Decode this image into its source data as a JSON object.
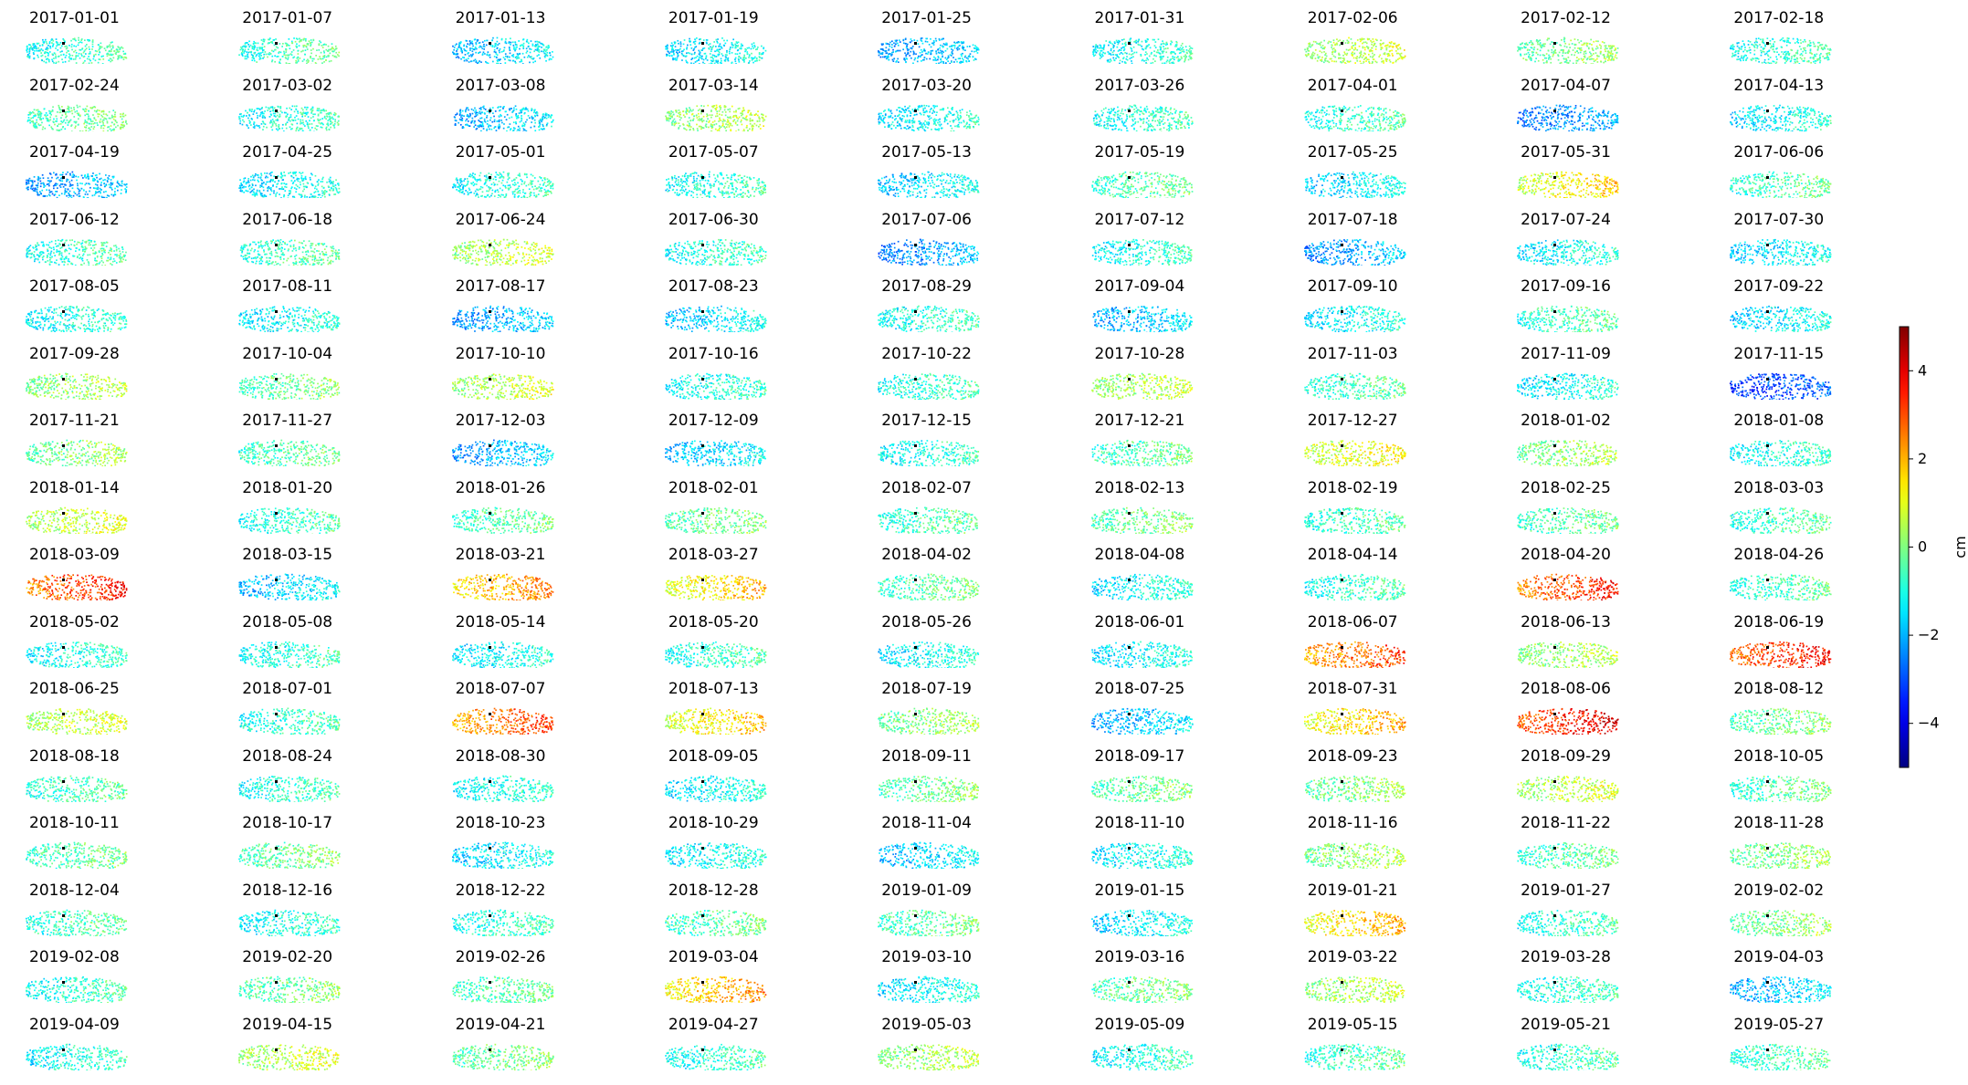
{
  "chart_data": {
    "type": "heatmap",
    "layout": "small-multiples",
    "rows": 16,
    "cols": 9,
    "panels": [
      {
        "date": "2017-01-01",
        "mean": -0.8
      },
      {
        "date": "2017-01-07",
        "mean": -0.6
      },
      {
        "date": "2017-01-13",
        "mean": -1.6
      },
      {
        "date": "2017-01-19",
        "mean": -1.3
      },
      {
        "date": "2017-01-25",
        "mean": -1.9
      },
      {
        "date": "2017-01-31",
        "mean": -1.0
      },
      {
        "date": "2017-02-06",
        "mean": 0.5
      },
      {
        "date": "2017-02-12",
        "mean": 0.0
      },
      {
        "date": "2017-02-18",
        "mean": -0.8
      },
      {
        "date": "2017-02-24",
        "mean": -0.3
      },
      {
        "date": "2017-03-02",
        "mean": -0.9
      },
      {
        "date": "2017-03-08",
        "mean": -1.8
      },
      {
        "date": "2017-03-14",
        "mean": 0.4
      },
      {
        "date": "2017-03-20",
        "mean": -1.2
      },
      {
        "date": "2017-03-26",
        "mean": -0.9
      },
      {
        "date": "2017-04-01",
        "mean": -0.7
      },
      {
        "date": "2017-04-07",
        "mean": -2.3
      },
      {
        "date": "2017-04-13",
        "mean": -1.2
      },
      {
        "date": "2017-04-19",
        "mean": -2.0
      },
      {
        "date": "2017-04-25",
        "mean": -1.3
      },
      {
        "date": "2017-05-01",
        "mean": -0.9
      },
      {
        "date": "2017-05-07",
        "mean": -0.9
      },
      {
        "date": "2017-05-13",
        "mean": -1.5
      },
      {
        "date": "2017-05-19",
        "mean": -0.4
      },
      {
        "date": "2017-05-25",
        "mean": -1.4
      },
      {
        "date": "2017-05-31",
        "mean": 1.2
      },
      {
        "date": "2017-06-06",
        "mean": -0.5
      },
      {
        "date": "2017-06-12",
        "mean": -0.7
      },
      {
        "date": "2017-06-18",
        "mean": -0.6
      },
      {
        "date": "2017-06-24",
        "mean": 0.5
      },
      {
        "date": "2017-06-30",
        "mean": -0.9
      },
      {
        "date": "2017-07-06",
        "mean": -2.2
      },
      {
        "date": "2017-07-12",
        "mean": -1.0
      },
      {
        "date": "2017-07-18",
        "mean": -2.0
      },
      {
        "date": "2017-07-24",
        "mean": -1.2
      },
      {
        "date": "2017-07-30",
        "mean": -1.4
      },
      {
        "date": "2017-08-05",
        "mean": -1.0
      },
      {
        "date": "2017-08-11",
        "mean": -1.2
      },
      {
        "date": "2017-08-17",
        "mean": -2.0
      },
      {
        "date": "2017-08-23",
        "mean": -1.5
      },
      {
        "date": "2017-08-29",
        "mean": -0.9
      },
      {
        "date": "2017-09-04",
        "mean": -1.8
      },
      {
        "date": "2017-09-10",
        "mean": -1.2
      },
      {
        "date": "2017-09-16",
        "mean": -0.6
      },
      {
        "date": "2017-09-22",
        "mean": -1.4
      },
      {
        "date": "2017-09-28",
        "mean": 0.3
      },
      {
        "date": "2017-10-04",
        "mean": -0.2
      },
      {
        "date": "2017-10-10",
        "mean": 0.6
      },
      {
        "date": "2017-10-16",
        "mean": -1.0
      },
      {
        "date": "2017-10-22",
        "mean": -0.8
      },
      {
        "date": "2017-10-28",
        "mean": 0.4
      },
      {
        "date": "2017-11-03",
        "mean": -0.6
      },
      {
        "date": "2017-11-09",
        "mean": -1.2
      },
      {
        "date": "2017-11-15",
        "mean": -3.0
      },
      {
        "date": "2017-11-21",
        "mean": 0.0
      },
      {
        "date": "2017-11-27",
        "mean": -0.4
      },
      {
        "date": "2017-12-03",
        "mean": -2.0
      },
      {
        "date": "2017-12-09",
        "mean": -1.6
      },
      {
        "date": "2017-12-15",
        "mean": -1.0
      },
      {
        "date": "2017-12-21",
        "mean": -0.4
      },
      {
        "date": "2017-12-27",
        "mean": 1.0
      },
      {
        "date": "2018-01-02",
        "mean": 0.2
      },
      {
        "date": "2018-01-08",
        "mean": -1.0
      },
      {
        "date": "2018-01-14",
        "mean": 0.7
      },
      {
        "date": "2018-01-20",
        "mean": -0.8
      },
      {
        "date": "2018-01-26",
        "mean": -0.4
      },
      {
        "date": "2018-02-01",
        "mean": -0.2
      },
      {
        "date": "2018-02-07",
        "mean": -0.6
      },
      {
        "date": "2018-02-13",
        "mean": -0.2
      },
      {
        "date": "2018-02-19",
        "mean": -0.6
      },
      {
        "date": "2018-02-25",
        "mean": -0.4
      },
      {
        "date": "2018-03-03",
        "mean": -0.6
      },
      {
        "date": "2018-03-09",
        "mean": 3.0
      },
      {
        "date": "2018-03-15",
        "mean": -1.6
      },
      {
        "date": "2018-03-21",
        "mean": 2.0
      },
      {
        "date": "2018-03-27",
        "mean": 1.4
      },
      {
        "date": "2018-04-02",
        "mean": -0.4
      },
      {
        "date": "2018-04-08",
        "mean": -1.2
      },
      {
        "date": "2018-04-14",
        "mean": -0.8
      },
      {
        "date": "2018-04-20",
        "mean": 3.0
      },
      {
        "date": "2018-04-26",
        "mean": -0.6
      },
      {
        "date": "2018-05-02",
        "mean": -1.0
      },
      {
        "date": "2018-05-08",
        "mean": -0.9
      },
      {
        "date": "2018-05-14",
        "mean": -1.2
      },
      {
        "date": "2018-05-20",
        "mean": -0.8
      },
      {
        "date": "2018-05-26",
        "mean": -1.2
      },
      {
        "date": "2018-06-01",
        "mean": -1.3
      },
      {
        "date": "2018-06-07",
        "mean": 2.6
      },
      {
        "date": "2018-06-13",
        "mean": 0.3
      },
      {
        "date": "2018-06-19",
        "mean": 3.2
      },
      {
        "date": "2018-06-25",
        "mean": 0.6
      },
      {
        "date": "2018-07-01",
        "mean": -0.8
      },
      {
        "date": "2018-07-07",
        "mean": 2.6
      },
      {
        "date": "2018-07-13",
        "mean": 1.4
      },
      {
        "date": "2018-07-19",
        "mean": 0.1
      },
      {
        "date": "2018-07-25",
        "mean": -1.8
      },
      {
        "date": "2018-07-31",
        "mean": 1.6
      },
      {
        "date": "2018-08-06",
        "mean": 3.5
      },
      {
        "date": "2018-08-12",
        "mean": -0.2
      },
      {
        "date": "2018-08-18",
        "mean": -0.6
      },
      {
        "date": "2018-08-24",
        "mean": -0.8
      },
      {
        "date": "2018-08-30",
        "mean": -1.0
      },
      {
        "date": "2018-09-05",
        "mean": -1.2
      },
      {
        "date": "2018-09-11",
        "mean": -0.2
      },
      {
        "date": "2018-09-17",
        "mean": -0.2
      },
      {
        "date": "2018-09-23",
        "mean": 0.0
      },
      {
        "date": "2018-09-29",
        "mean": 0.6
      },
      {
        "date": "2018-10-05",
        "mean": -0.4
      },
      {
        "date": "2018-10-11",
        "mean": -0.4
      },
      {
        "date": "2018-10-17",
        "mean": -0.2
      },
      {
        "date": "2018-10-23",
        "mean": -1.4
      },
      {
        "date": "2018-10-29",
        "mean": -1.2
      },
      {
        "date": "2018-11-04",
        "mean": -1.6
      },
      {
        "date": "2018-11-10",
        "mean": -1.2
      },
      {
        "date": "2018-11-16",
        "mean": 0.2
      },
      {
        "date": "2018-11-22",
        "mean": -0.4
      },
      {
        "date": "2018-11-28",
        "mean": 0.0
      },
      {
        "date": "2018-12-04",
        "mean": -0.6
      },
      {
        "date": "2018-12-16",
        "mean": -1.0
      },
      {
        "date": "2018-12-22",
        "mean": -0.8
      },
      {
        "date": "2018-12-28",
        "mean": -0.4
      },
      {
        "date": "2019-01-09",
        "mean": -0.4
      },
      {
        "date": "2019-01-15",
        "mean": -1.4
      },
      {
        "date": "2019-01-21",
        "mean": 1.6
      },
      {
        "date": "2019-01-27",
        "mean": -0.8
      },
      {
        "date": "2019-02-02",
        "mean": 0.0
      },
      {
        "date": "2019-02-08",
        "mean": -0.8
      },
      {
        "date": "2019-02-20",
        "mean": -0.2
      },
      {
        "date": "2019-02-26",
        "mean": -0.4
      },
      {
        "date": "2019-03-04",
        "mean": 1.8
      },
      {
        "date": "2019-03-10",
        "mean": -1.2
      },
      {
        "date": "2019-03-16",
        "mean": -0.2
      },
      {
        "date": "2019-03-22",
        "mean": 0.4
      },
      {
        "date": "2019-03-28",
        "mean": -0.8
      },
      {
        "date": "2019-04-03",
        "mean": -1.8
      },
      {
        "date": "2019-04-09",
        "mean": -1.0
      },
      {
        "date": "2019-04-15",
        "mean": 0.6
      },
      {
        "date": "2019-04-21",
        "mean": -0.2
      },
      {
        "date": "2019-04-27",
        "mean": -0.8
      },
      {
        "date": "2019-05-03",
        "mean": 0.3
      },
      {
        "date": "2019-05-09",
        "mean": -1.0
      },
      {
        "date": "2019-05-15",
        "mean": -0.6
      },
      {
        "date": "2019-05-21",
        "mean": -0.8
      },
      {
        "date": "2019-05-27",
        "mean": -0.6
      }
    ],
    "colorbar": {
      "label": "cm",
      "ticks": [
        4,
        2,
        0,
        -2,
        -4
      ],
      "tick_labels": [
        "4",
        "2",
        "0",
        "−2",
        "−4"
      ],
      "vmin": -5,
      "vmax": 5,
      "colormap": "jet"
    }
  }
}
